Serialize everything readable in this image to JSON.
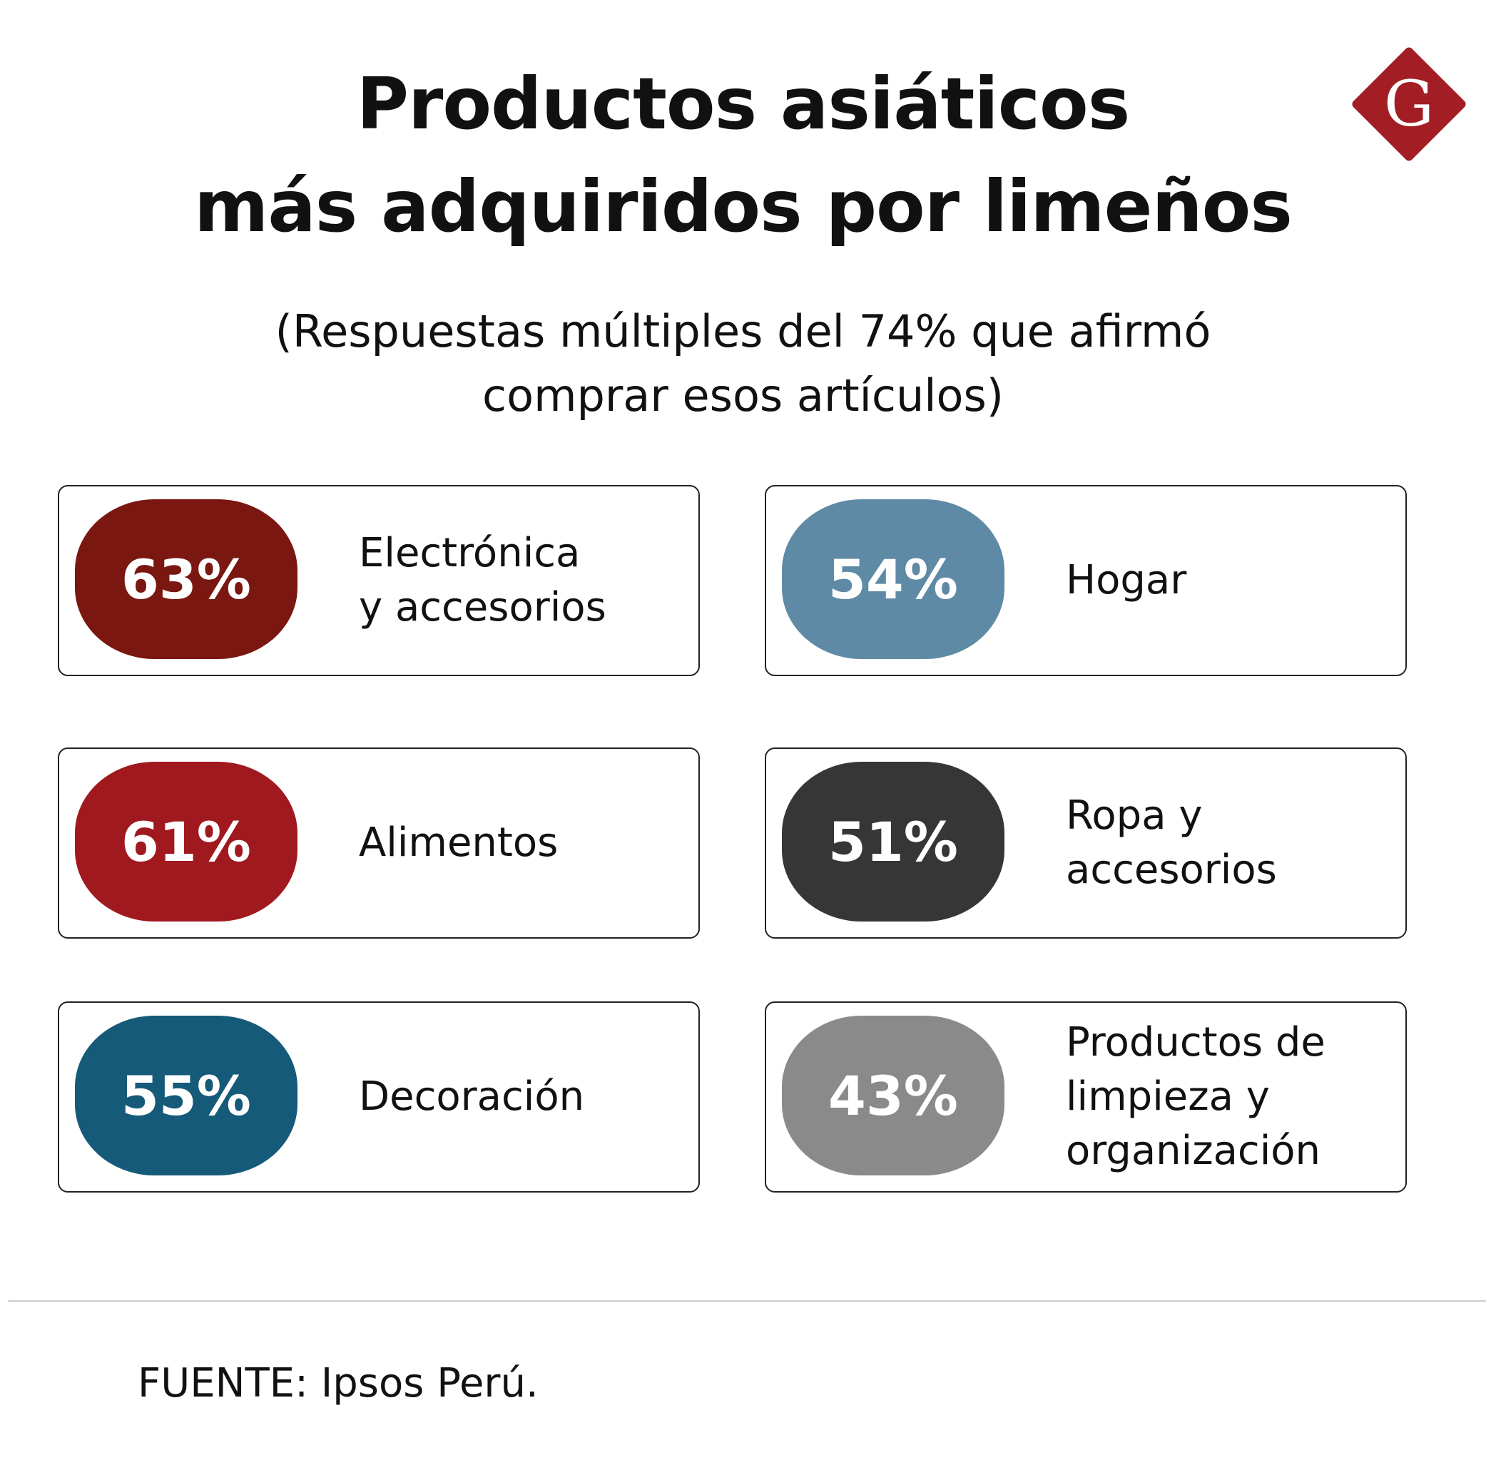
{
  "header": {
    "title": [
      "Productos asiáticos",
      "más adquiridos por limeños"
    ],
    "subtitle": [
      "(Respuestas múltiples del 74% que afirmó",
      "comprar esos artículos)"
    ],
    "logo": "G"
  },
  "cards": [
    {
      "value": "63%",
      "label": [
        "Electrónica",
        "y accesorios"
      ],
      "color": "#7a1711"
    },
    {
      "value": "54%",
      "label": [
        "Hogar"
      ],
      "color": "#5f8aa5"
    },
    {
      "value": "61%",
      "label": [
        "Alimentos"
      ],
      "color": "#a0191f"
    },
    {
      "value": "51%",
      "label": [
        "Ropa y",
        "accesorios"
      ],
      "color": "#363636"
    },
    {
      "value": "55%",
      "label": [
        "Decoración"
      ],
      "color": "#155a78"
    },
    {
      "value": "43%",
      "label": [
        "Productos de",
        "limpieza y",
        "organización"
      ],
      "color": "#8a8a8a"
    }
  ],
  "footer": {
    "source": "FUENTE: Ipsos Perú."
  }
}
